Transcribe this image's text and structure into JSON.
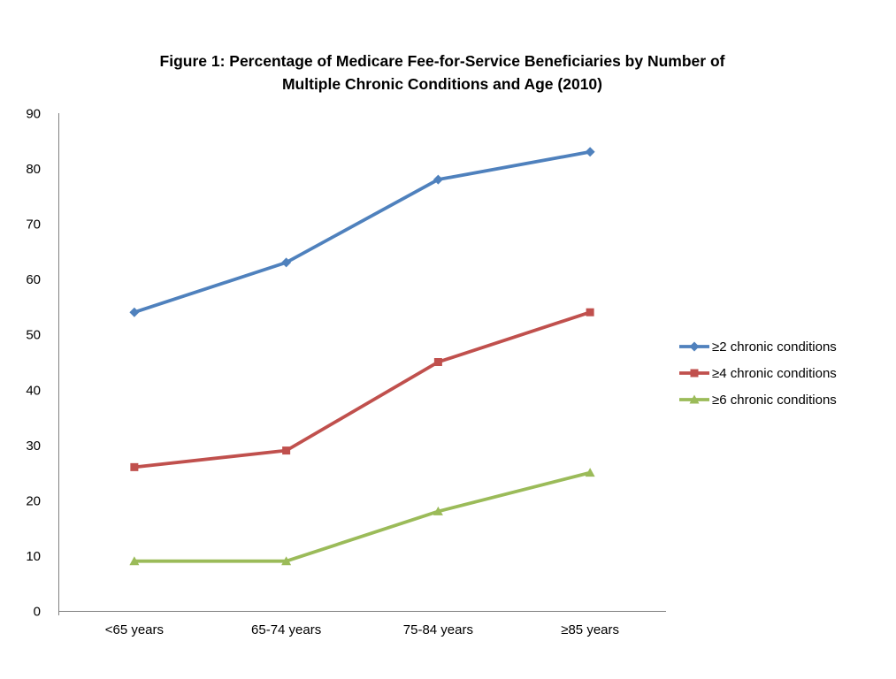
{
  "title": {
    "line1": "Figure 1: Percentage of Medicare Fee-for-Service Beneficiaries by Number of",
    "line2": "Multiple Chronic Conditions and Age (2010)"
  },
  "chart_data": {
    "type": "line",
    "title": "Figure 1: Percentage of Medicare Fee-for-Service Beneficiaries by Number of Multiple Chronic Conditions and Age (2010)",
    "categories": [
      "<65 years",
      "65-74 years",
      "75-84 years",
      "≥85 years"
    ],
    "series": [
      {
        "name": "≥2 chronic conditions",
        "values": [
          54,
          63,
          78,
          83
        ],
        "color": "#4F81BD",
        "marker": "diamond"
      },
      {
        "name": "≥4 chronic conditions",
        "values": [
          26,
          29,
          45,
          54
        ],
        "color": "#C0504D",
        "marker": "square"
      },
      {
        "name": "≥6 chronic conditions",
        "values": [
          9,
          9,
          18,
          25
        ],
        "color": "#9BBB59",
        "marker": "triangle"
      }
    ],
    "xlabel": "",
    "ylabel": "",
    "ylim": [
      0,
      90
    ],
    "yticks": [
      0,
      10,
      20,
      30,
      40,
      50,
      60,
      70,
      80,
      90
    ],
    "grid": false,
    "legend_position": "right",
    "axis_color": "#808080",
    "text_color": "#000000",
    "background": "#FFFFFF"
  }
}
